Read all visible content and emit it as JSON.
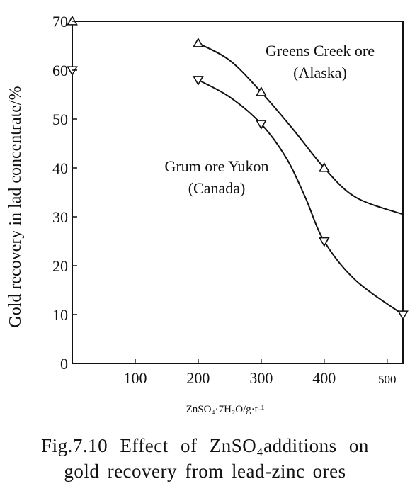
{
  "chart_data": {
    "type": "line",
    "xlabel": "ZnSO₄·7H₂O/g·t-¹",
    "ylabel": "Gold recovery in lad concentrate/%",
    "xlim": [
      0,
      525
    ],
    "ylim": [
      0,
      70
    ],
    "x_ticks": [
      100,
      200,
      300,
      400,
      500
    ],
    "y_ticks": [
      0,
      10,
      20,
      30,
      40,
      50,
      60,
      70
    ],
    "grid": false,
    "legend": "none (series labelled inline)",
    "series": [
      {
        "name": "Greens Creek ore (Alaska)",
        "label_lines": [
          "Greens Creek ore",
          "(Alaska)"
        ],
        "marker": "triangle-up",
        "legend_marker_value": 70,
        "points": [
          [
            200,
            65.5
          ],
          [
            300,
            55.5
          ],
          [
            400,
            40
          ]
        ],
        "curve": [
          [
            200,
            65.5
          ],
          [
            250,
            62
          ],
          [
            300,
            55.5
          ],
          [
            350,
            48
          ],
          [
            400,
            40
          ],
          [
            450,
            34
          ],
          [
            525,
            30.5
          ]
        ]
      },
      {
        "name": "Grum ore Yukon (Canada)",
        "label_lines": [
          "Grum ore Yukon",
          "(Canada)"
        ],
        "marker": "triangle-down",
        "legend_marker_value": 60,
        "points": [
          [
            200,
            58
          ],
          [
            300,
            49
          ],
          [
            400,
            25
          ],
          [
            525,
            10
          ]
        ],
        "curve": [
          [
            200,
            58
          ],
          [
            250,
            54.5
          ],
          [
            300,
            49
          ],
          [
            340,
            42
          ],
          [
            370,
            34
          ],
          [
            400,
            25
          ],
          [
            450,
            17
          ],
          [
            525,
            10
          ]
        ]
      }
    ]
  },
  "caption": {
    "line1": "Fig.7.10 Effect of ZnSO₄additions on",
    "line2": "gold recovery from lead-zinc ores"
  }
}
